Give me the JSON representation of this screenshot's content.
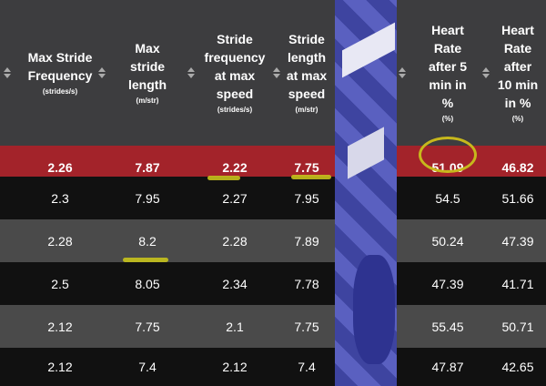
{
  "colors": {
    "header_bg": "#3d3d3f",
    "highlight_row": "#a3232a",
    "row_dark": "#111111",
    "row_light": "#4a4a4a",
    "marker": "#c7c21c"
  },
  "left_table": {
    "columns": [
      {
        "label": "Max Stride Frequency",
        "unit": "(strides/s)"
      },
      {
        "label": "Max stride length",
        "unit": "(m/str)"
      },
      {
        "label": "Stride frequency at max speed",
        "unit": "(strides/s)"
      },
      {
        "label": "Stride length at max speed",
        "unit": "(m/str)"
      }
    ],
    "rows": [
      [
        "2.26",
        "7.87",
        "2.22",
        "7.75"
      ],
      [
        "2.3",
        "7.95",
        "2.27",
        "7.95"
      ],
      [
        "2.28",
        "8.2",
        "2.28",
        "7.89"
      ],
      [
        "2.5",
        "8.05",
        "2.34",
        "7.78"
      ],
      [
        "2.12",
        "7.75",
        "2.1",
        "7.75"
      ],
      [
        "2.12",
        "7.4",
        "2.12",
        "7.4"
      ]
    ]
  },
  "right_table": {
    "columns": [
      {
        "label": "Heart Rate after 5 min in %",
        "unit": "(%)"
      },
      {
        "label": "Heart Rate after 10 min in %",
        "unit": "(%)"
      }
    ],
    "rows": [
      [
        "51.09",
        "46.82"
      ],
      [
        "54.5",
        "51.66"
      ],
      [
        "50.24",
        "47.39"
      ],
      [
        "47.39",
        "41.71"
      ],
      [
        "55.45",
        "50.71"
      ],
      [
        "47.87",
        "42.65"
      ]
    ]
  }
}
